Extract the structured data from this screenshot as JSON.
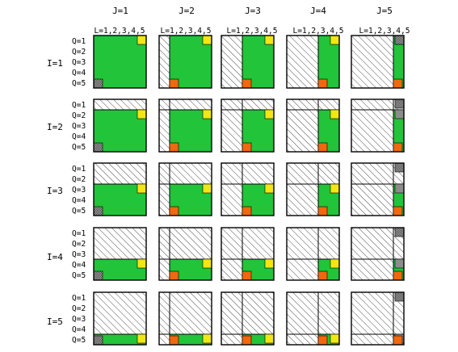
{
  "column_headers": [
    "J=1",
    "J=2",
    "J=3",
    "J=4",
    "J=5"
  ],
  "l_label": "L=1,2,3,4,5",
  "row_headers": [
    "I=1",
    "I=2",
    "I=3",
    "I=4",
    "I=5"
  ],
  "q_labels": [
    "Q=1",
    "Q=2",
    "Q=3",
    "Q=4",
    "Q=5"
  ],
  "grid_size": 5,
  "colors": {
    "active": "#22c43a",
    "yellow": "#f2e614",
    "orange": "#f2680c",
    "gray": "#8c8c8c",
    "hatch": "#000000",
    "background": "#ffffff"
  }
}
